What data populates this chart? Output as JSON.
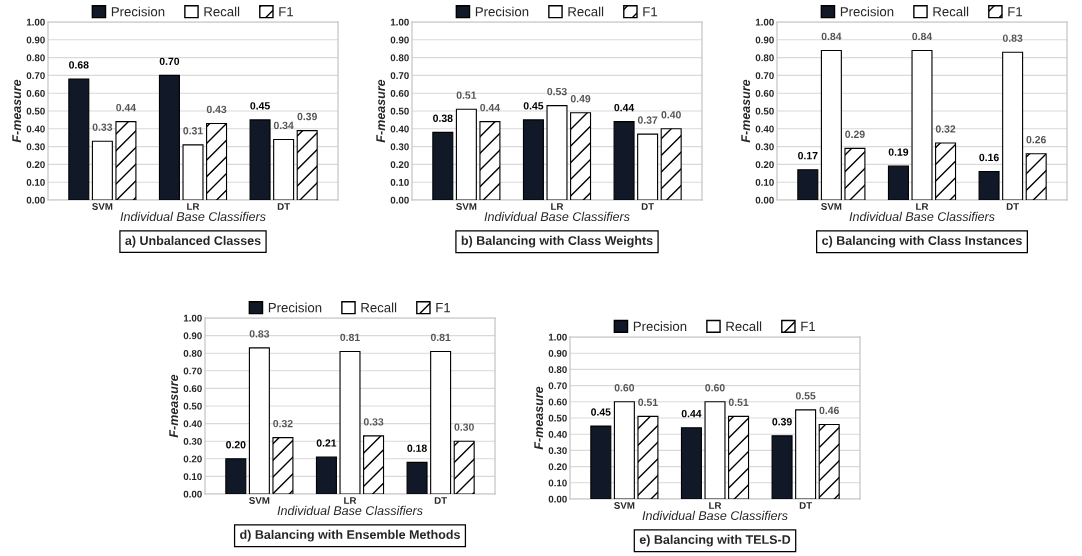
{
  "chart_data": [
    {
      "type": "bar",
      "title": "a) Unbalanced Classes",
      "xlabel": "Individual Base Classifiers",
      "ylabel": "F-measure",
      "categories": [
        "SVM",
        "LR",
        "DT"
      ],
      "ylim": [
        0,
        1
      ],
      "yticks": [
        {
          "value": 0,
          "label": "0.00"
        },
        {
          "value": 0.1,
          "label": "0.10"
        },
        {
          "value": 0.2,
          "label": "0.20"
        },
        {
          "value": 0.3,
          "label": "0.30"
        },
        {
          "value": 0.4,
          "label": "0.40"
        },
        {
          "value": 0.5,
          "label": "0.50"
        },
        {
          "value": 0.6,
          "label": "0.60"
        },
        {
          "value": 0.7,
          "label": "0.70"
        },
        {
          "value": 0.8,
          "label": "0.80"
        },
        {
          "value": 0.9,
          "label": "0.90"
        },
        {
          "value": 1,
          "label": "1.00"
        }
      ],
      "grid": "y",
      "legend": "top",
      "series": [
        {
          "name": "Precision",
          "color": "#111827",
          "values": [
            0.68,
            0.7,
            0.45
          ],
          "value_labels": [
            "0.68",
            "0.70",
            "0.45"
          ]
        },
        {
          "name": "Recall",
          "color": "#ffffff",
          "values": [
            0.33,
            0.31,
            0.34
          ],
          "value_labels": [
            "0.33",
            "0.31",
            "0.34"
          ]
        },
        {
          "name": "F1",
          "color": "#000000",
          "values": [
            0.44,
            0.43,
            0.39
          ],
          "value_labels": [
            "0.44",
            "0.43",
            "0.39"
          ]
        }
      ]
    },
    {
      "type": "bar",
      "title": "b) Balancing with Class Weights",
      "xlabel": "Individual Base Classifiers",
      "ylabel": "F-measure",
      "categories": [
        "SVM",
        "LR",
        "DT"
      ],
      "ylim": [
        0,
        1
      ],
      "yticks": [
        {
          "value": 0,
          "label": "0.00"
        },
        {
          "value": 0.1,
          "label": "0.10"
        },
        {
          "value": 0.2,
          "label": "0.20"
        },
        {
          "value": 0.3,
          "label": "0.30"
        },
        {
          "value": 0.4,
          "label": "0.40"
        },
        {
          "value": 0.5,
          "label": "0.50"
        },
        {
          "value": 0.6,
          "label": "0.60"
        },
        {
          "value": 0.7,
          "label": "0.70"
        },
        {
          "value": 0.8,
          "label": "0.80"
        },
        {
          "value": 0.9,
          "label": "0.90"
        },
        {
          "value": 1,
          "label": "1.00"
        }
      ],
      "grid": "y",
      "legend": "top",
      "series": [
        {
          "name": "Precision",
          "color": "#111827",
          "values": [
            0.38,
            0.45,
            0.44
          ],
          "value_labels": [
            "0.38",
            "0.45",
            "0.44"
          ]
        },
        {
          "name": "Recall",
          "color": "#ffffff",
          "values": [
            0.51,
            0.53,
            0.37
          ],
          "value_labels": [
            "0.51",
            "0.53",
            "0.37"
          ]
        },
        {
          "name": "F1",
          "color": "#000000",
          "values": [
            0.44,
            0.49,
            0.4
          ],
          "value_labels": [
            "0.44",
            "0.49",
            "0.40"
          ]
        }
      ]
    },
    {
      "type": "bar",
      "title": "c) Balancing with Class Instances",
      "xlabel": "Individual Base Classifiers",
      "ylabel": "F-measure",
      "categories": [
        "SVM",
        "LR",
        "DT"
      ],
      "ylim": [
        0,
        1
      ],
      "yticks": [
        {
          "value": 0,
          "label": "0.00"
        },
        {
          "value": 0.1,
          "label": "0.10"
        },
        {
          "value": 0.2,
          "label": "0.20"
        },
        {
          "value": 0.3,
          "label": "0.30"
        },
        {
          "value": 0.4,
          "label": "0.40"
        },
        {
          "value": 0.5,
          "label": "0.50"
        },
        {
          "value": 0.6,
          "label": "0.60"
        },
        {
          "value": 0.7,
          "label": "0.70"
        },
        {
          "value": 0.8,
          "label": "0.80"
        },
        {
          "value": 0.9,
          "label": "0.90"
        },
        {
          "value": 1,
          "label": "1.00"
        }
      ],
      "grid": "y",
      "legend": "top",
      "series": [
        {
          "name": "Precision",
          "color": "#111827",
          "values": [
            0.17,
            0.19,
            0.16
          ],
          "value_labels": [
            "0.17",
            "0.19",
            "0.16"
          ]
        },
        {
          "name": "Recall",
          "color": "#ffffff",
          "values": [
            0.84,
            0.84,
            0.83
          ],
          "value_labels": [
            "0.84",
            "0.84",
            "0.83"
          ]
        },
        {
          "name": "F1",
          "color": "#000000",
          "values": [
            0.29,
            0.32,
            0.26
          ],
          "value_labels": [
            "0.29",
            "0.32",
            "0.26"
          ]
        }
      ]
    },
    {
      "type": "bar",
      "title": "d) Balancing with Ensemble Methods",
      "xlabel": "Individual Base Classifiers",
      "ylabel": "F-measure",
      "categories": [
        "SVM",
        "LR",
        "DT"
      ],
      "ylim": [
        0,
        1
      ],
      "yticks": [
        {
          "value": 0,
          "label": "0.00"
        },
        {
          "value": 0.1,
          "label": "0.10"
        },
        {
          "value": 0.2,
          "label": "0.20"
        },
        {
          "value": 0.3,
          "label": "0.30"
        },
        {
          "value": 0.4,
          "label": "0.40"
        },
        {
          "value": 0.5,
          "label": "0.50"
        },
        {
          "value": 0.6,
          "label": "0.60"
        },
        {
          "value": 0.7,
          "label": "0.70"
        },
        {
          "value": 0.8,
          "label": "0.80"
        },
        {
          "value": 0.9,
          "label": "0.90"
        },
        {
          "value": 1,
          "label": "1.00"
        }
      ],
      "grid": "y",
      "legend": "top",
      "series": [
        {
          "name": "Precision",
          "color": "#111827",
          "values": [
            0.2,
            0.21,
            0.18
          ],
          "value_labels": [
            "0.20",
            "0.21",
            "0.18"
          ]
        },
        {
          "name": "Recall",
          "color": "#ffffff",
          "values": [
            0.83,
            0.81,
            0.81
          ],
          "value_labels": [
            "0.83",
            "0.81",
            "0.81"
          ]
        },
        {
          "name": "F1",
          "color": "#000000",
          "values": [
            0.32,
            0.33,
            0.3
          ],
          "value_labels": [
            "0.32",
            "0.33",
            "0.30"
          ]
        }
      ]
    },
    {
      "type": "bar",
      "title": "e) Balancing with TELS-D",
      "xlabel": "Individual Base Classifiers",
      "ylabel": "F-measure",
      "categories": [
        "SVM",
        "LR",
        "DT"
      ],
      "ylim": [
        0,
        1
      ],
      "yticks": [
        {
          "value": 0,
          "label": "0.00"
        },
        {
          "value": 0.1,
          "label": "0.10"
        },
        {
          "value": 0.2,
          "label": "0.20"
        },
        {
          "value": 0.3,
          "label": "0.30"
        },
        {
          "value": 0.4,
          "label": "0.40"
        },
        {
          "value": 0.5,
          "label": "0.50"
        },
        {
          "value": 0.6,
          "label": "0.60"
        },
        {
          "value": 0.7,
          "label": "0.70"
        },
        {
          "value": 0.8,
          "label": "0.80"
        },
        {
          "value": 0.9,
          "label": "0.90"
        },
        {
          "value": 1,
          "label": "1.00"
        }
      ],
      "grid": "y",
      "legend": "top",
      "series": [
        {
          "name": "Precision",
          "color": "#111827",
          "values": [
            0.45,
            0.44,
            0.39
          ],
          "value_labels": [
            "0.45",
            "0.44",
            "0.39"
          ]
        },
        {
          "name": "Recall",
          "color": "#ffffff",
          "values": [
            0.6,
            0.6,
            0.55
          ],
          "value_labels": [
            "0.60",
            "0.60",
            "0.55"
          ]
        },
        {
          "name": "F1",
          "color": "#000000",
          "values": [
            0.51,
            0.51,
            0.46
          ],
          "value_labels": [
            "0.51",
            "0.51",
            "0.46"
          ]
        }
      ]
    }
  ]
}
